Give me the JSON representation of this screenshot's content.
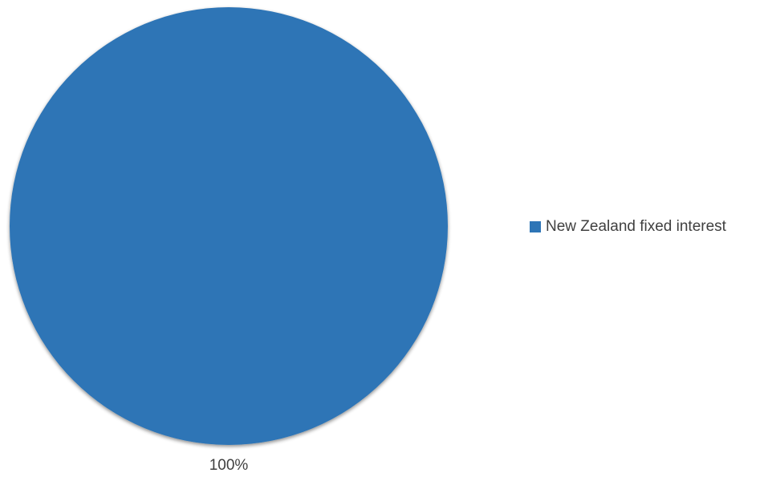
{
  "chart_data": {
    "type": "pie",
    "title": "",
    "series": [
      {
        "name": "New Zealand fixed interest",
        "value": 100,
        "label": "100%",
        "color": "#2E75B6"
      }
    ],
    "legend_position": "right"
  }
}
